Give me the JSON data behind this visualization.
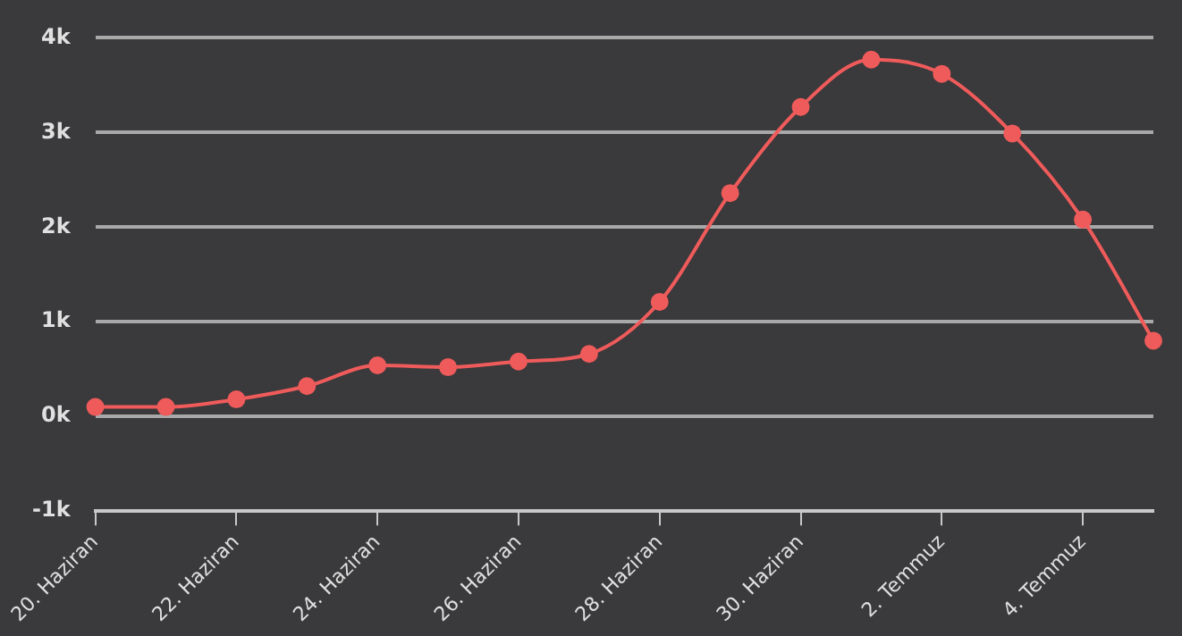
{
  "chart_data": {
    "type": "line",
    "categories": [
      "20. Haziran",
      null,
      "22. Haziran",
      null,
      "24. Haziran",
      null,
      "26. Haziran",
      null,
      "28. Haziran",
      null,
      "30. Haziran",
      null,
      "2. Temmuz",
      null,
      "4. Temmuz",
      null
    ],
    "series": [
      {
        "color": "#ef5b5b",
        "values": [
          100,
          100,
          180,
          320,
          540,
          520,
          580,
          660,
          1210,
          2360,
          3270,
          3770,
          3620,
          2990,
          2080,
          800
        ]
      }
    ],
    "ylim": [
      -1000,
      4000
    ],
    "yticks": [
      {
        "value": -1000,
        "label": "-1k"
      },
      {
        "value": 0,
        "label": "0k"
      },
      {
        "value": 1000,
        "label": "1k"
      },
      {
        "value": 2000,
        "label": "2k"
      },
      {
        "value": 3000,
        "label": "3k"
      },
      {
        "value": 4000,
        "label": "4k"
      }
    ],
    "grid": "y",
    "legend": false,
    "marker": "circle",
    "line_style": "solid"
  }
}
